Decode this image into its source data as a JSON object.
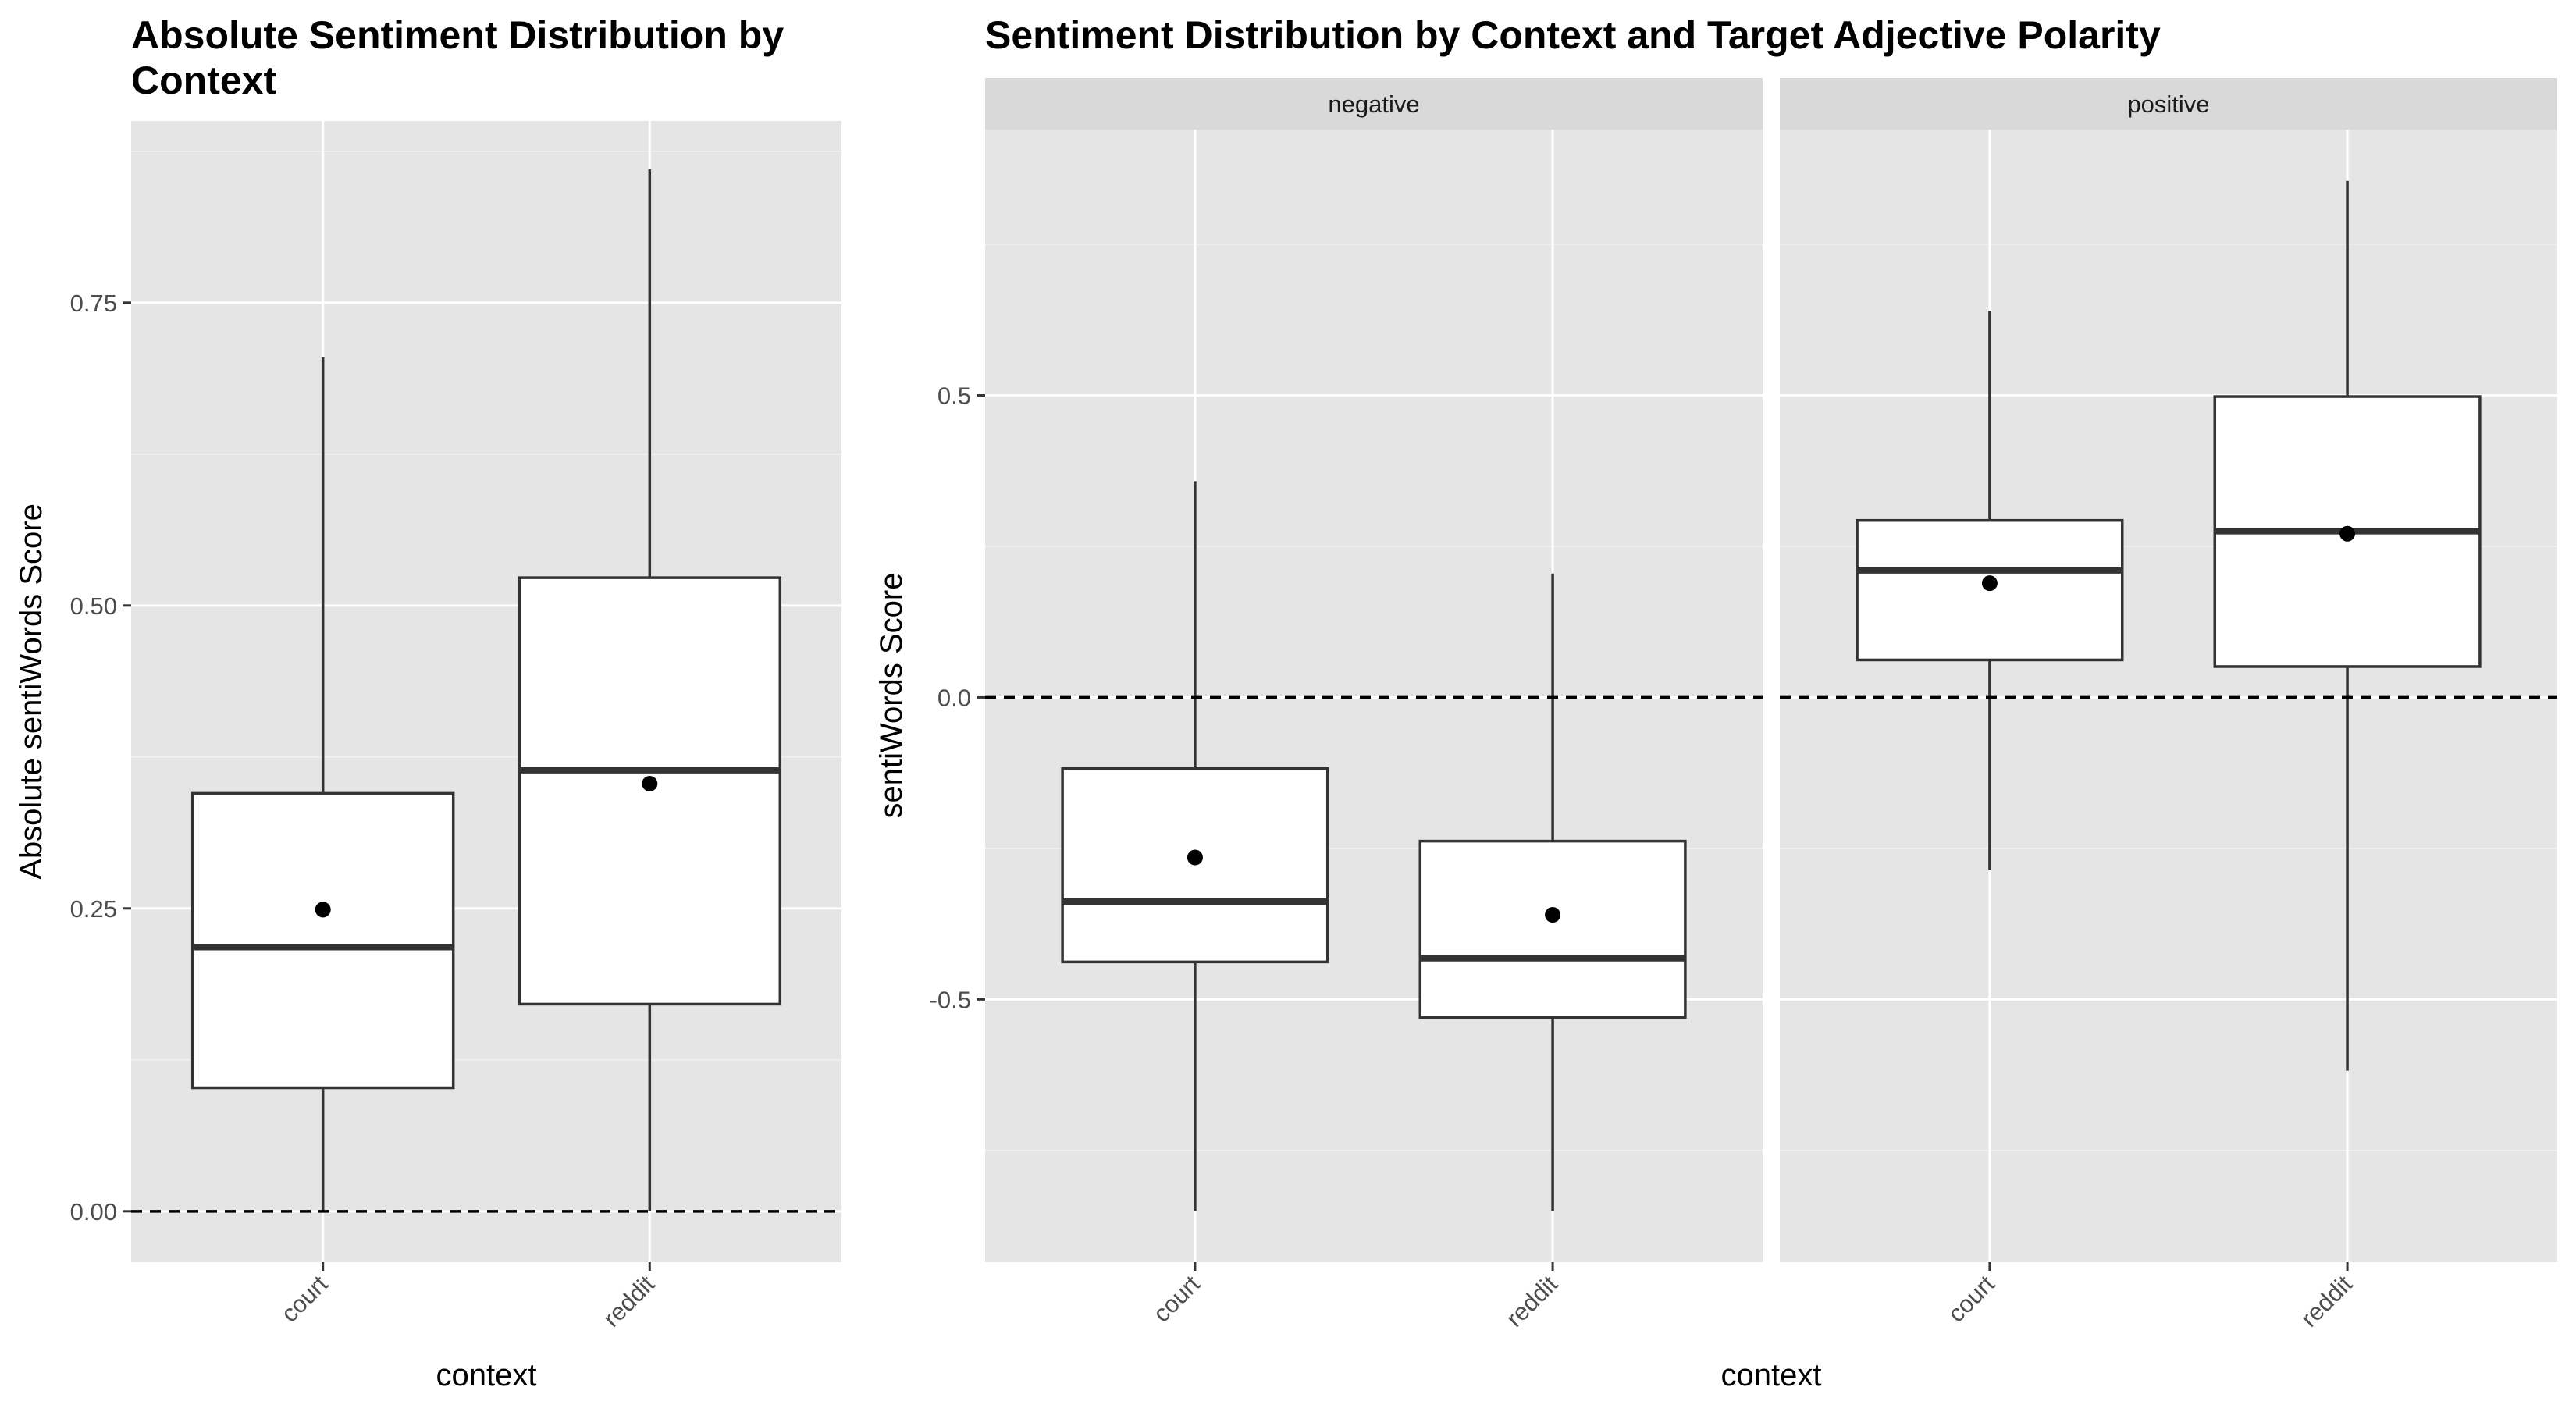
{
  "chart_data": [
    {
      "type": "box",
      "title": "Absolute Sentiment Distribution by Context",
      "title_lines": [
        "Absolute Sentiment Distribution by",
        "Context"
      ],
      "xlabel": "context",
      "ylabel": "Absolute sentiWords Score",
      "ylim": [
        -0.042,
        0.9
      ],
      "yticks": [
        0.0,
        0.25,
        0.5,
        0.75
      ],
      "ytick_labels": [
        "0.00",
        "0.25",
        "0.50",
        "0.75"
      ],
      "reference_line": 0.0,
      "categories": [
        "court",
        "reddit"
      ],
      "boxes": [
        {
          "category": "court",
          "min": 0.0,
          "q1": 0.102,
          "median": 0.218,
          "q3": 0.345,
          "max": 0.705,
          "mean": 0.249
        },
        {
          "category": "reddit",
          "min": 0.0,
          "q1": 0.171,
          "median": 0.364,
          "q3": 0.523,
          "max": 0.86,
          "mean": 0.353
        }
      ]
    },
    {
      "type": "box",
      "title": "Sentiment Distribution by Context and Target Adjective Polarity",
      "xlabel": "context",
      "ylabel": "sentiWords Score",
      "ylim": [
        -0.935,
        0.94
      ],
      "yticks": [
        -0.5,
        0.0,
        0.5
      ],
      "ytick_labels": [
        "-0.5",
        "0.0",
        "0.5"
      ],
      "reference_line": 0.0,
      "categories": [
        "court",
        "reddit"
      ],
      "facets": [
        {
          "label": "negative",
          "boxes": [
            {
              "category": "court",
              "min": -0.85,
              "q1": -0.438,
              "median": -0.338,
              "q3": -0.118,
              "max": 0.358,
              "mean": -0.265
            },
            {
              "category": "reddit",
              "min": -0.85,
              "q1": -0.53,
              "median": -0.432,
              "q3": -0.238,
              "max": 0.205,
              "mean": -0.36
            }
          ]
        },
        {
          "label": "positive",
          "boxes": [
            {
              "category": "court",
              "min": -0.285,
              "q1": 0.062,
              "median": 0.21,
              "q3": 0.293,
              "max": 0.64,
              "mean": 0.189
            },
            {
              "category": "reddit",
              "min": -0.618,
              "q1": 0.051,
              "median": 0.275,
              "q3": 0.498,
              "max": 0.855,
              "mean": 0.271
            }
          ]
        }
      ]
    }
  ]
}
